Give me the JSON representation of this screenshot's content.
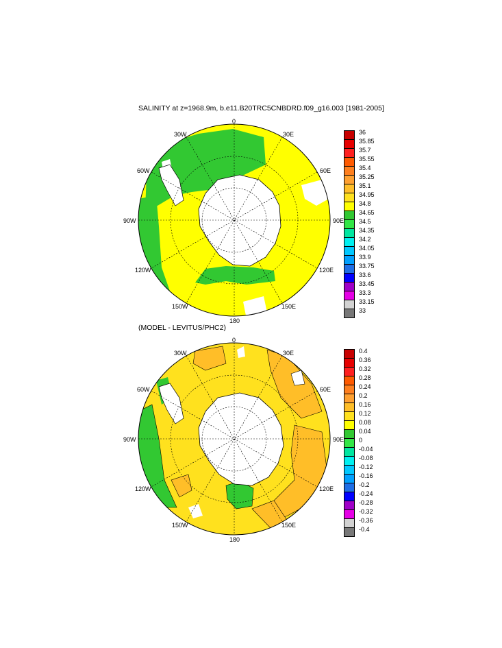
{
  "panel1": {
    "title": "SALINITY at z=1968.9m, b.e11.B20TRC5CNBDRD.f09_g16.003 [1981-2005]",
    "longitude_labels": {
      "top": "0",
      "upper_left": "30W",
      "upper_right": "30E",
      "left_upper": "60W",
      "right_upper": "60E",
      "left": "90W",
      "right": "90E",
      "left_lower": "120W",
      "right_lower": "120E",
      "lower_left": "150W",
      "lower_right": "150E",
      "bottom": "180"
    },
    "colorbar": {
      "labels": [
        "36",
        "35.85",
        "35.7",
        "35.55",
        "35.4",
        "35.25",
        "35.1",
        "34.95",
        "34.8",
        "34.65",
        "34.5",
        "34.35",
        "34.2",
        "34.05",
        "33.9",
        "33.75",
        "33.6",
        "33.45",
        "33.3",
        "33.15",
        "33"
      ],
      "colors": [
        "#C80000",
        "#E60000",
        "#FF2020",
        "#FF5A00",
        "#FF7F1E",
        "#FFA030",
        "#FFBE28",
        "#FFE11E",
        "#FFFF00",
        "#32C832",
        "#32E646",
        "#00E6A0",
        "#00F0F0",
        "#00C8FF",
        "#00A0FF",
        "#1E6EE6",
        "#0000FF",
        "#A000C8",
        "#E600E6",
        "#D2D2D2",
        "#787878"
      ]
    }
  },
  "panel2": {
    "title": "(MODEL - LEVITUS/PHC2)",
    "longitude_labels": {
      "top": "0",
      "upper_left": "30W",
      "upper_right": "30E",
      "left_upper": "60W",
      "right_upper": "60E",
      "left": "90W",
      "right": "90E",
      "left_lower": "120W",
      "right_lower": "120E",
      "lower_left": "150W",
      "lower_right": "150E",
      "bottom": "180"
    },
    "colorbar": {
      "labels": [
        "0.4",
        "0.36",
        "0.32",
        "0.28",
        "0.24",
        "0.2",
        "0.16",
        "0.12",
        "0.08",
        "0.04",
        "0",
        "-0.04",
        "-0.08",
        "-0.12",
        "-0.16",
        "-0.2",
        "-0.24",
        "-0.28",
        "-0.32",
        "-0.36",
        "-0.4"
      ],
      "colors": [
        "#C80000",
        "#E60000",
        "#FF2020",
        "#FF5A00",
        "#FF7F1E",
        "#FFA030",
        "#FFBE28",
        "#FFE11E",
        "#FFFF00",
        "#32C832",
        "#32E646",
        "#00E6A0",
        "#00F0F0",
        "#00C8FF",
        "#00A0FF",
        "#1E6EE6",
        "#0000FF",
        "#A000C8",
        "#E600E6",
        "#D2D2D2",
        "#787878"
      ]
    }
  }
}
